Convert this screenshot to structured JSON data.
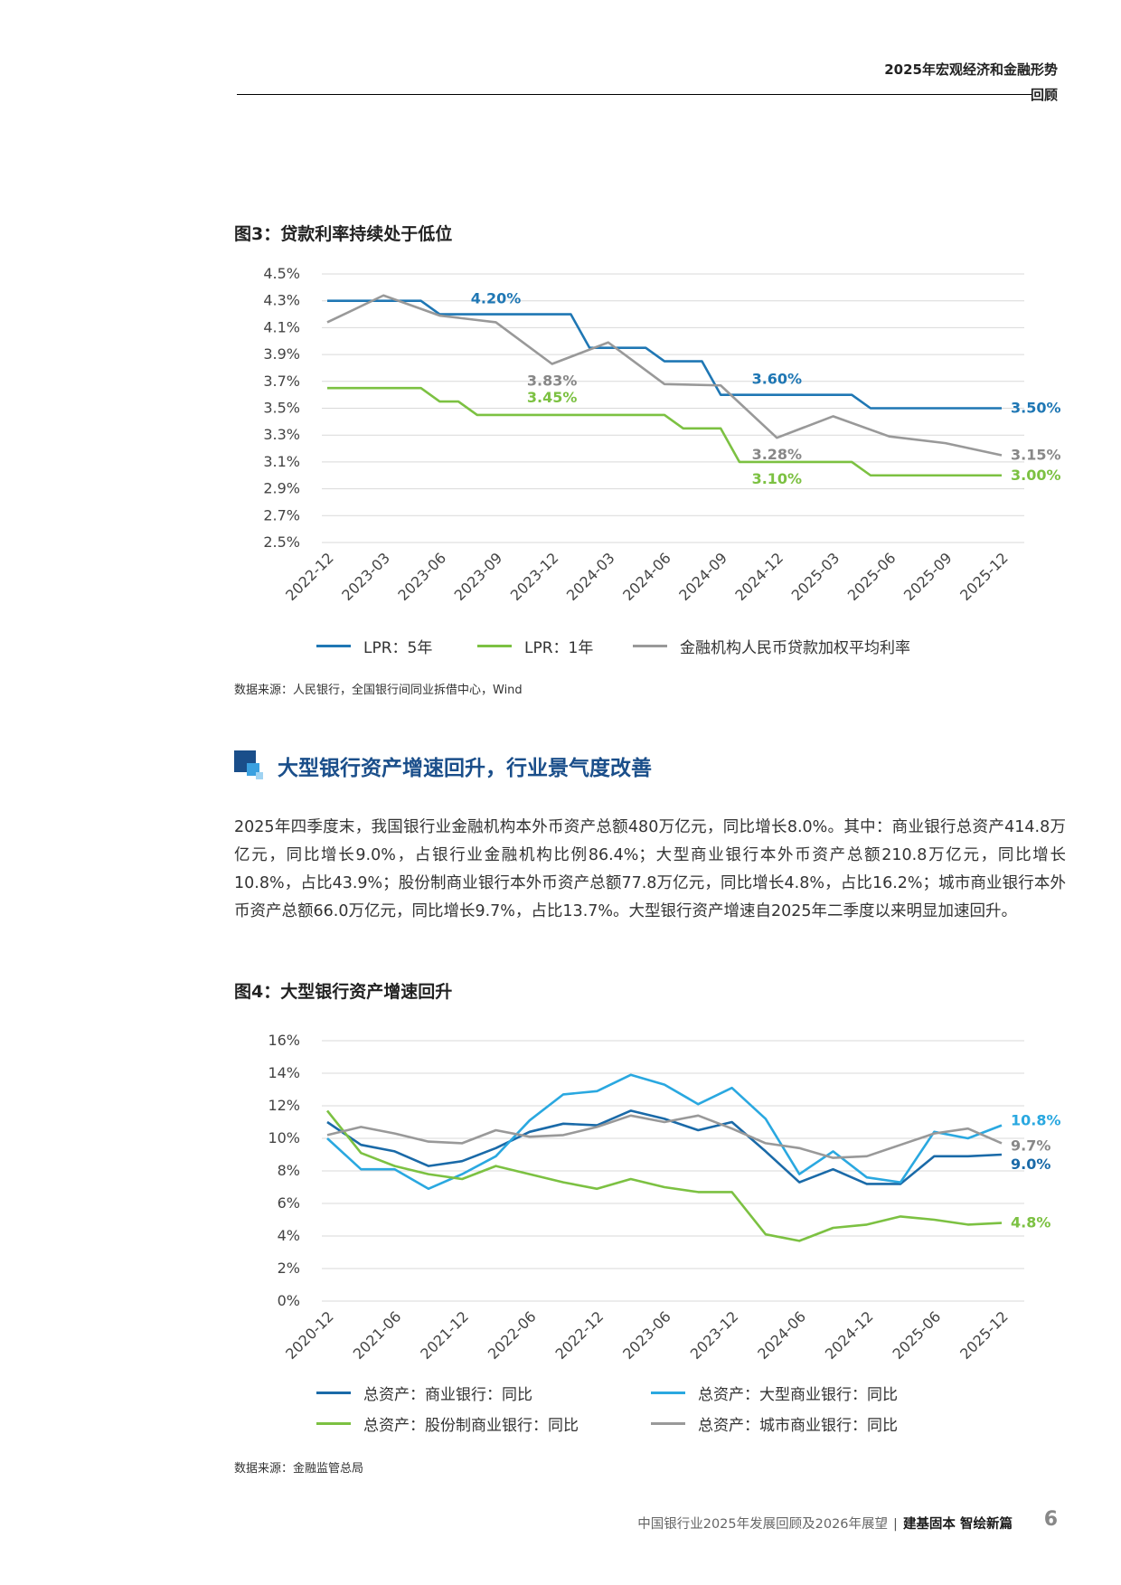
{
  "header": {
    "title": "2025年宏观经济和金融形势",
    "subtitle": "回顾"
  },
  "figure3": {
    "title": "图3：贷款利率持续处于低位",
    "source": "数据来源：人民银行，全国银行间同业拆借中心，Wind",
    "legend": [
      "LPR：5年",
      "LPR：1年",
      "金融机构人民币贷款加权平均利率"
    ]
  },
  "section": {
    "heading": "大型银行资产增速回升，行业景气度改善",
    "paragraph": "2025年四季度末，我国银行业金融机构本外币资产总额480万亿元，同比增长8.0%。其中：商业银行总资产414.8万亿元，同比增长9.0%，占银行业金融机构比例86.4%；大型商业银行本外币资产总额210.8万亿元，同比增长10.8%，占比43.9%；股份制商业银行本外币资产总额77.8万亿元，同比增长4.8%，占比16.2%；城市商业银行本外币资产总额66.0万亿元，同比增长9.7%，占比13.7%。大型银行资产增速自2025年二季度以来明显加速回升。"
  },
  "figure4": {
    "title": "图4：大型银行资产增速回升",
    "source": "数据来源：金融监管总局",
    "legend": [
      "总资产：商业银行：同比",
      "总资产：大型商业银行：同比",
      "总资产：股份制商业银行：同比",
      "总资产：城市商业银行：同比"
    ]
  },
  "footer": {
    "report": "中国银行业2025年发展回顾及2026年展望",
    "separator": "|",
    "slogan": "建基固本 智绘新篇",
    "page": "6"
  },
  "chart_data": [
    {
      "type": "line",
      "title": "图3：贷款利率持续处于低位",
      "x": [
        "2022-12",
        "2023-01",
        "2023-02",
        "2023-03",
        "2023-04",
        "2023-05",
        "2023-06",
        "2023-07",
        "2023-08",
        "2023-09",
        "2023-10",
        "2023-11",
        "2023-12",
        "2024-01",
        "2024-02",
        "2024-03",
        "2024-04",
        "2024-05",
        "2024-06",
        "2024-07",
        "2024-08",
        "2024-09",
        "2024-10",
        "2024-11",
        "2024-12",
        "2025-01",
        "2025-02",
        "2025-03",
        "2025-04",
        "2025-05",
        "2025-06",
        "2025-07",
        "2025-08",
        "2025-09",
        "2025-10",
        "2025-11",
        "2025-12"
      ],
      "xticks": [
        "2022-12",
        "2023-03",
        "2023-06",
        "2023-09",
        "2023-12",
        "2024-03",
        "2024-06",
        "2024-09",
        "2024-12",
        "2025-03",
        "2025-06",
        "2025-09",
        "2025-12"
      ],
      "ylim": [
        2.5,
        4.5
      ],
      "yticks": [
        "2.5%",
        "2.7%",
        "2.9%",
        "3.1%",
        "3.3%",
        "3.5%",
        "3.7%",
        "3.9%",
        "4.1%",
        "4.3%",
        "4.5%"
      ],
      "colors": [
        "#1f77b4",
        "#7cc142",
        "#999999"
      ],
      "legend_position": "bottom",
      "grid": true,
      "series": [
        {
          "name": "LPR：5年",
          "values": [
            4.3,
            4.3,
            4.3,
            4.3,
            4.3,
            4.3,
            4.2,
            4.2,
            4.2,
            4.2,
            4.2,
            4.2,
            4.2,
            4.2,
            3.95,
            3.95,
            3.95,
            3.95,
            3.85,
            3.85,
            3.85,
            3.6,
            3.6,
            3.6,
            3.6,
            3.6,
            3.6,
            3.6,
            3.6,
            3.5,
            3.5,
            3.5,
            3.5,
            3.5,
            3.5,
            3.5,
            3.5
          ]
        },
        {
          "name": "LPR：1年",
          "values": [
            3.65,
            3.65,
            3.65,
            3.65,
            3.65,
            3.65,
            3.55,
            3.55,
            3.45,
            3.45,
            3.45,
            3.45,
            3.45,
            3.45,
            3.45,
            3.45,
            3.45,
            3.45,
            3.45,
            3.35,
            3.35,
            3.35,
            3.1,
            3.1,
            3.1,
            3.1,
            3.1,
            3.1,
            3.1,
            3.0,
            3.0,
            3.0,
            3.0,
            3.0,
            3.0,
            3.0,
            3.0
          ]
        },
        {
          "name": "金融机构人民币贷款加权平均利率",
          "x": [
            "2022-12",
            "2023-03",
            "2023-06",
            "2023-09",
            "2023-12",
            "2024-03",
            "2024-06",
            "2024-09",
            "2024-12",
            "2025-03",
            "2025-06",
            "2025-09",
            "2025-12"
          ],
          "values": [
            4.14,
            4.34,
            4.19,
            4.14,
            3.83,
            3.99,
            3.68,
            3.67,
            3.28,
            3.44,
            3.29,
            3.24,
            3.15
          ]
        }
      ],
      "annotations": [
        {
          "text": "4.20%",
          "x": "2023-09",
          "y": 4.2,
          "color": "#1f77b4"
        },
        {
          "text": "3.83%",
          "x": "2023-12",
          "y": 3.83,
          "color": "#888888"
        },
        {
          "text": "3.45%",
          "x": "2023-12",
          "y": 3.45,
          "color": "#7cc142"
        },
        {
          "text": "3.60%",
          "x": "2024-12",
          "y": 3.6,
          "color": "#1f77b4"
        },
        {
          "text": "3.28%",
          "x": "2024-12",
          "y": 3.28,
          "color": "#888888"
        },
        {
          "text": "3.10%",
          "x": "2024-12",
          "y": 3.1,
          "color": "#7cc142"
        },
        {
          "text": "3.50%",
          "x": "2025-12",
          "y": 3.5,
          "color": "#1f77b4"
        },
        {
          "text": "3.15%",
          "x": "2025-12",
          "y": 3.15,
          "color": "#888888"
        },
        {
          "text": "3.00%",
          "x": "2025-12",
          "y": 3.0,
          "color": "#7cc142"
        }
      ]
    },
    {
      "type": "line",
      "title": "图4：大型银行资产增速回升",
      "x": [
        "2020-12",
        "2021-03",
        "2021-06",
        "2021-09",
        "2021-12",
        "2022-03",
        "2022-06",
        "2022-09",
        "2022-12",
        "2023-03",
        "2023-06",
        "2023-09",
        "2023-12",
        "2024-03",
        "2024-06",
        "2024-09",
        "2024-12",
        "2025-03",
        "2025-06",
        "2025-09",
        "2025-12"
      ],
      "xticks": [
        "2020-12",
        "2021-06",
        "2021-12",
        "2022-06",
        "2022-12",
        "2023-06",
        "2023-12",
        "2024-06",
        "2024-12",
        "2025-06",
        "2025-12"
      ],
      "ylim": [
        0,
        16
      ],
      "yticks": [
        "0%",
        "2%",
        "4%",
        "6%",
        "8%",
        "10%",
        "12%",
        "14%",
        "16%"
      ],
      "colors": [
        "#1a6aa8",
        "#2aa8e0",
        "#7cc142",
        "#999999"
      ],
      "legend_position": "bottom",
      "grid": true,
      "series": [
        {
          "name": "总资产：商业银行：同比",
          "values": [
            11.0,
            9.6,
            9.2,
            8.3,
            8.6,
            9.4,
            10.4,
            10.9,
            10.8,
            11.7,
            11.2,
            10.5,
            11.0,
            9.2,
            7.3,
            8.1,
            7.2,
            7.2,
            8.9,
            8.9,
            9.0
          ]
        },
        {
          "name": "总资产：大型商业银行：同比",
          "values": [
            10.0,
            8.1,
            8.1,
            6.9,
            7.8,
            8.9,
            11.1,
            12.7,
            12.9,
            13.9,
            13.3,
            12.1,
            13.1,
            11.2,
            7.8,
            9.2,
            7.6,
            7.3,
            10.4,
            10.0,
            10.8
          ]
        },
        {
          "name": "总资产：股份制商业银行：同比",
          "values": [
            11.7,
            9.1,
            8.3,
            7.8,
            7.5,
            8.3,
            7.8,
            7.3,
            6.9,
            7.5,
            7.0,
            6.7,
            6.7,
            4.1,
            3.7,
            4.5,
            4.7,
            5.2,
            5.0,
            4.7,
            4.8
          ]
        },
        {
          "name": "总资产：城市商业银行：同比",
          "values": [
            10.2,
            10.7,
            10.3,
            9.8,
            9.7,
            10.5,
            10.1,
            10.2,
            10.7,
            11.4,
            11.0,
            11.4,
            10.6,
            9.7,
            9.4,
            8.8,
            8.9,
            9.6,
            10.3,
            10.6,
            9.7
          ]
        }
      ],
      "annotations": [
        {
          "text": "10.8%",
          "x": "2025-12",
          "y": 10.8,
          "color": "#2aa8e0"
        },
        {
          "text": "9.7%",
          "x": "2025-12",
          "y": 9.7,
          "color": "#888888"
        },
        {
          "text": "9.0%",
          "x": "2025-12",
          "y": 9.0,
          "color": "#1a6aa8"
        },
        {
          "text": "4.8%",
          "x": "2025-12",
          "y": 4.8,
          "color": "#7cc142"
        }
      ]
    }
  ]
}
